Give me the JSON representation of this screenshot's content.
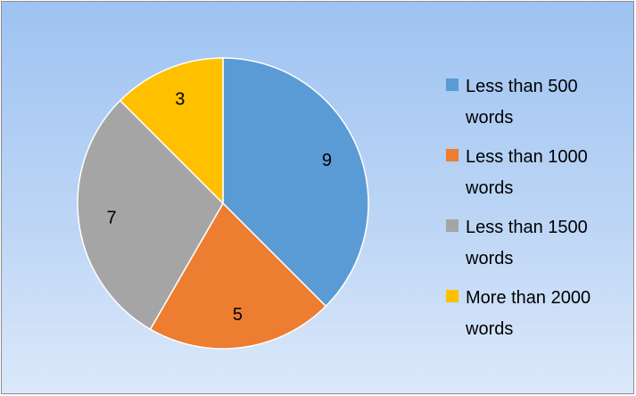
{
  "chart_data": {
    "type": "pie",
    "categories": [
      "Less than 500 words",
      "Less than 1000 words",
      "Less than 1500 words",
      "More than 2000 words"
    ],
    "values": [
      9,
      5,
      7,
      3
    ],
    "data_labels": [
      "9",
      "5",
      "7",
      "3"
    ],
    "colors": [
      "#5b9bd5",
      "#ed7d31",
      "#a5a5a5",
      "#ffc000"
    ],
    "legend_position": "right",
    "start_angle": "top, clockwise"
  },
  "legend": {
    "items": [
      {
        "label": "Less than 500 words",
        "color": "#5b9bd5"
      },
      {
        "label": "Less than 1000 words",
        "color": "#ed7d31"
      },
      {
        "label": "Less than 1500 words",
        "color": "#a5a5a5"
      },
      {
        "label": "More than 2000 words",
        "color": "#ffc000"
      }
    ]
  }
}
